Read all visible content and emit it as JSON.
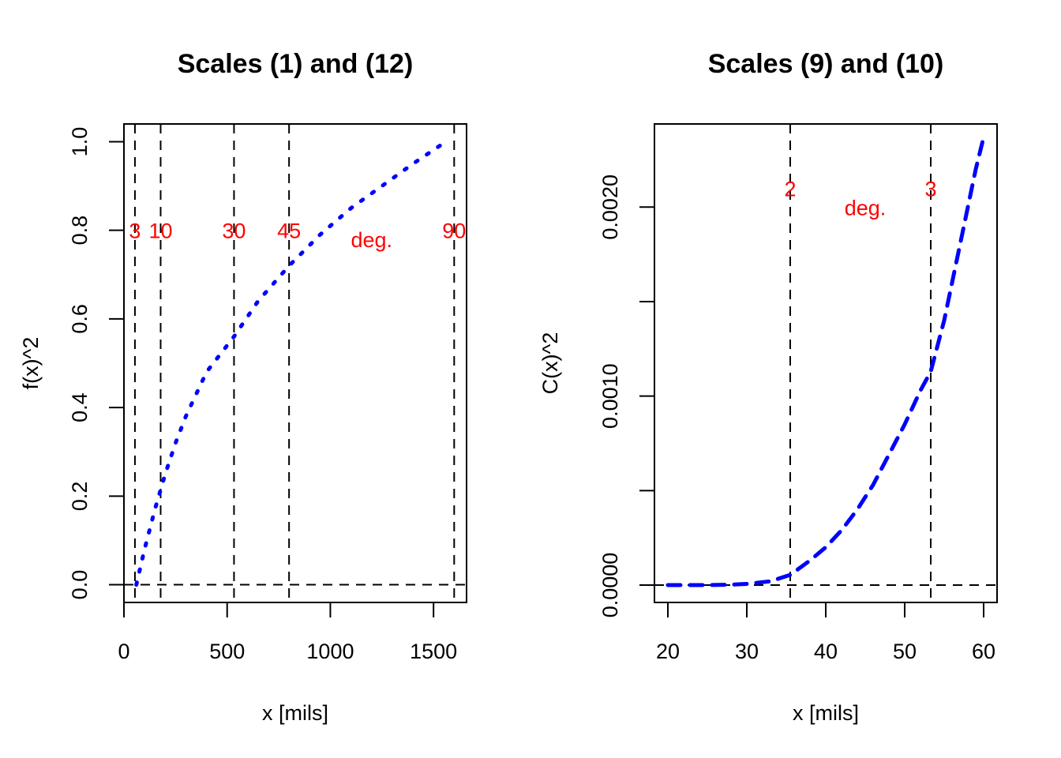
{
  "chart_data": [
    {
      "type": "line",
      "title": "Scales (1) and (12)",
      "xlabel": "x [mils]",
      "ylabel": "f(x)^2",
      "xlim": [
        0,
        1660
      ],
      "ylim": [
        -0.04,
        1.04
      ],
      "x_ticks": [
        0,
        500,
        1000,
        1500
      ],
      "x_tick_labels": [
        "0",
        "500",
        "1000",
        "1500"
      ],
      "y_ticks": [
        0.0,
        0.2,
        0.4,
        0.6,
        0.8,
        1.0
      ],
      "y_tick_labels": [
        "0.0",
        "0.2",
        "0.4",
        "0.6",
        "0.8",
        "1.0"
      ],
      "series": [
        {
          "name": "f(x)^2",
          "color": "#0000ff",
          "line_style": "dotted",
          "x": [
            60,
            100,
            150,
            200,
            250,
            300,
            400,
            533,
            650,
            800,
            950,
            1100,
            1250,
            1400,
            1560
          ],
          "y": [
            0.0,
            0.08,
            0.17,
            0.25,
            0.32,
            0.38,
            0.48,
            0.56,
            0.64,
            0.72,
            0.79,
            0.85,
            0.9,
            0.95,
            1.0
          ]
        }
      ],
      "reference_lines": {
        "vertical_x": [
          0,
          53.3,
          177.8,
          533.3,
          800,
          1600
        ],
        "horizontal_y": [
          0
        ],
        "color": "#000000",
        "style": "dashed"
      },
      "annotations": [
        {
          "text": "3",
          "x": 53.3,
          "y": 0.8
        },
        {
          "text": "10",
          "x": 177.8,
          "y": 0.8
        },
        {
          "text": "30",
          "x": 533.3,
          "y": 0.8
        },
        {
          "text": "45",
          "x": 800,
          "y": 0.8
        },
        {
          "text": "90",
          "x": 1600,
          "y": 0.8
        },
        {
          "text": "deg.",
          "x": 1200,
          "y": 0.78
        }
      ],
      "annotation_color": "#ff0000"
    },
    {
      "type": "line",
      "title": "Scales (9) and (10)",
      "xlabel": "x [mils]",
      "ylabel": "C(x)^2",
      "xlim": [
        18.3,
        61.7
      ],
      "ylim": [
        -9.2e-05,
        0.00244
      ],
      "x_ticks": [
        20,
        30,
        40,
        50,
        60
      ],
      "x_tick_labels": [
        "20",
        "30",
        "40",
        "50",
        "60"
      ],
      "y_ticks": [
        0.0,
        0.0005,
        0.001,
        0.0015,
        0.002
      ],
      "y_tick_labels": [
        "0.0000",
        "",
        "0.0010",
        "",
        "0.0020"
      ],
      "series": [
        {
          "name": "C(x)^2",
          "color": "#0000ff",
          "line_style": "dashed",
          "x": [
            20,
            25,
            28,
            30,
            33,
            35.5,
            38,
            40,
            42,
            44,
            46,
            48,
            50,
            52,
            53.3,
            55,
            57,
            59,
            60
          ],
          "y": [
            0.0,
            0.0,
            2e-06,
            6e-06,
            2e-05,
            5.4e-05,
            0.00013,
            0.0002,
            0.00029,
            0.0004,
            0.00053,
            0.00069,
            0.00085,
            0.00103,
            0.00113,
            0.0014,
            0.0018,
            0.0022,
            0.00237
          ]
        }
      ],
      "reference_lines": {
        "vertical_x": [
          35.5,
          53.3
        ],
        "horizontal_y": [
          0
        ],
        "color": "#000000",
        "style": "dashed"
      },
      "annotations": [
        {
          "text": "2",
          "x": 35.5,
          "y": 0.0021
        },
        {
          "text": "3",
          "x": 53.3,
          "y": 0.0021
        },
        {
          "text": "deg.",
          "x": 45,
          "y": 0.002
        }
      ],
      "annotation_color": "#ff0000"
    }
  ]
}
